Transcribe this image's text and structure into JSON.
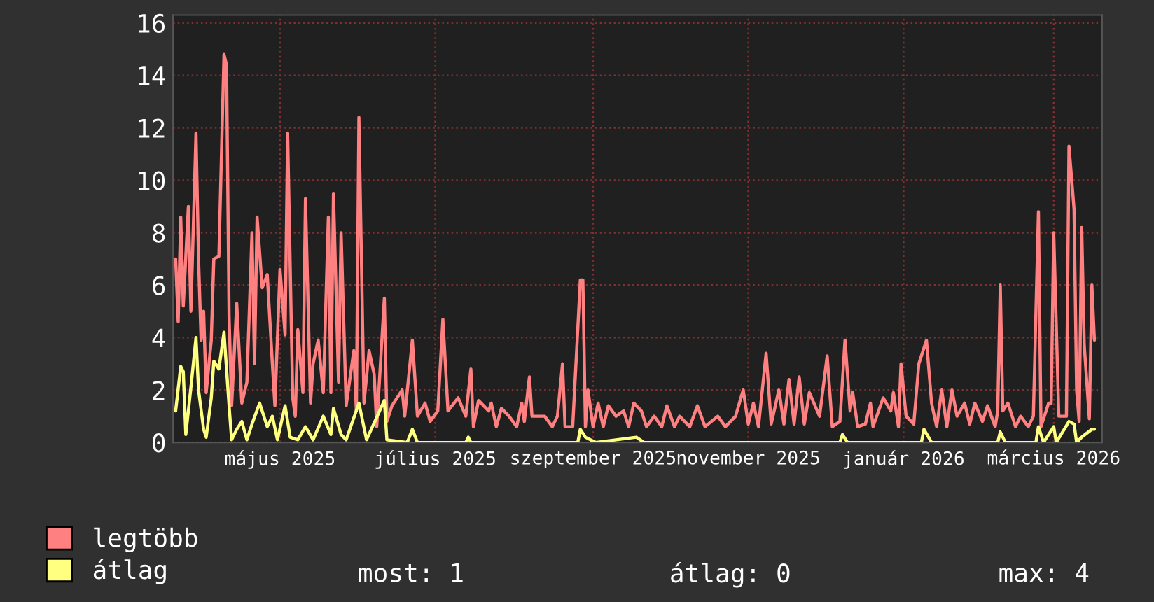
{
  "chart_data": {
    "type": "line",
    "xlim": [
      "2025-03-20",
      "2026-03-20"
    ],
    "xticks": [
      {
        "value": "2025-05-01",
        "label": "május 2025"
      },
      {
        "value": "2025-07-01",
        "label": "július 2025"
      },
      {
        "value": "2025-09-01",
        "label": "szeptember 2025"
      },
      {
        "value": "2025-11-01",
        "label": "november 2025"
      },
      {
        "value": "2026-01-01",
        "label": "január 2026"
      },
      {
        "value": "2026-03-01",
        "label": "március 2026"
      }
    ],
    "ylim": [
      0,
      16.3
    ],
    "yticks": [
      0,
      2,
      4,
      6,
      8,
      10,
      12,
      14,
      16
    ],
    "grid": true,
    "legend": "bottom left",
    "annotations": [
      "most: 1",
      "átlag: 0",
      "max: 4"
    ],
    "series": [
      {
        "name": "legtöbb",
        "color": "#ff8080",
        "x": [
          "2025-03-21",
          "2025-03-22",
          "2025-03-23",
          "2025-03-24",
          "2025-03-26",
          "2025-03-27",
          "2025-03-29",
          "2025-03-30",
          "2025-03-31",
          "2025-04-01",
          "2025-04-02",
          "2025-04-04",
          "2025-04-05",
          "2025-04-07",
          "2025-04-09",
          "2025-04-10",
          "2025-04-11",
          "2025-04-12",
          "2025-04-14",
          "2025-04-16",
          "2025-04-18",
          "2025-04-20",
          "2025-04-21",
          "2025-04-22",
          "2025-04-24",
          "2025-04-26",
          "2025-04-28",
          "2025-04-29",
          "2025-05-01",
          "2025-05-03",
          "2025-05-04",
          "2025-05-06",
          "2025-05-07",
          "2025-05-08",
          "2025-05-10",
          "2025-05-11",
          "2025-05-13",
          "2025-05-14",
          "2025-05-16",
          "2025-05-18",
          "2025-05-20",
          "2025-05-21",
          "2025-05-22",
          "2025-05-24",
          "2025-05-25",
          "2025-05-27",
          "2025-05-30",
          "2025-05-31",
          "2025-06-01",
          "2025-06-03",
          "2025-06-05",
          "2025-06-07",
          "2025-06-08",
          "2025-06-11",
          "2025-06-12",
          "2025-06-14",
          "2025-06-18",
          "2025-06-19",
          "2025-06-22",
          "2025-06-24",
          "2025-06-27",
          "2025-06-29",
          "2025-07-02",
          "2025-07-04",
          "2025-07-06",
          "2025-07-10",
          "2025-07-13",
          "2025-07-15",
          "2025-07-16",
          "2025-07-18",
          "2025-07-22",
          "2025-07-23",
          "2025-07-25",
          "2025-07-27",
          "2025-07-30",
          "2025-08-02",
          "2025-08-04",
          "2025-08-05",
          "2025-08-07",
          "2025-08-08",
          "2025-08-13",
          "2025-08-16",
          "2025-08-18",
          "2025-08-20",
          "2025-08-21",
          "2025-08-24",
          "2025-08-27",
          "2025-08-28",
          "2025-08-29",
          "2025-08-30",
          "2025-09-01",
          "2025-09-03",
          "2025-09-05",
          "2025-09-07",
          "2025-09-10",
          "2025-09-13",
          "2025-09-15",
          "2025-09-17",
          "2025-09-20",
          "2025-09-22",
          "2025-09-25",
          "2025-09-28",
          "2025-09-30",
          "2025-10-03",
          "2025-10-05",
          "2025-10-09",
          "2025-10-12",
          "2025-10-15",
          "2025-10-20",
          "2025-10-23",
          "2025-10-27",
          "2025-10-30",
          "2025-11-01",
          "2025-11-03",
          "2025-11-05",
          "2025-11-08",
          "2025-11-10",
          "2025-11-13",
          "2025-11-15",
          "2025-11-17",
          "2025-11-19",
          "2025-11-21",
          "2025-11-23",
          "2025-11-25",
          "2025-11-29",
          "2025-12-02",
          "2025-12-04",
          "2025-12-07",
          "2025-12-09",
          "2025-12-11",
          "2025-12-12",
          "2025-12-14",
          "2025-12-17",
          "2025-12-19",
          "2025-12-20",
          "2025-12-24",
          "2025-12-27",
          "2025-12-28",
          "2025-12-30",
          "2025-12-31",
          "2026-01-02",
          "2026-01-05",
          "2026-01-07",
          "2026-01-10",
          "2026-01-12",
          "2026-01-14",
          "2026-01-16",
          "2026-01-18",
          "2026-01-20",
          "2026-01-22",
          "2026-01-25",
          "2026-01-27",
          "2026-01-29",
          "2026-02-01",
          "2026-02-03",
          "2026-02-06",
          "2026-02-07",
          "2026-02-08",
          "2026-02-09",
          "2026-02-11",
          "2026-02-14",
          "2026-02-16",
          "2026-02-19",
          "2026-02-21",
          "2026-02-23",
          "2026-02-24",
          "2026-02-27",
          "2026-02-28",
          "2026-03-01",
          "2026-03-03",
          "2026-03-06",
          "2026-03-07",
          "2026-03-09",
          "2026-03-10",
          "2026-03-11",
          "2026-03-12",
          "2026-03-13",
          "2026-03-15",
          "2026-03-16",
          "2026-03-17"
        ],
        "values": [
          7.0,
          4.6,
          8.6,
          5.2,
          9.0,
          5.0,
          11.8,
          7.0,
          3.9,
          5.0,
          1.9,
          3.9,
          7.0,
          7.1,
          14.8,
          14.4,
          4.8,
          1.4,
          5.3,
          1.5,
          2.3,
          8.0,
          3.0,
          8.6,
          5.9,
          6.4,
          3.0,
          1.4,
          6.6,
          4.1,
          11.8,
          1.7,
          1.0,
          4.3,
          1.9,
          9.3,
          1.5,
          3.0,
          3.9,
          1.9,
          8.6,
          1.9,
          9.5,
          2.3,
          8.0,
          1.4,
          3.5,
          1.2,
          12.4,
          1.5,
          3.5,
          2.6,
          0.6,
          5.5,
          0.8,
          1.4,
          2.0,
          1.0,
          3.9,
          1.0,
          1.5,
          0.8,
          1.2,
          4.7,
          1.2,
          1.7,
          1.0,
          2.8,
          0.6,
          1.6,
          1.2,
          1.5,
          0.6,
          1.3,
          1.0,
          0.6,
          1.5,
          0.8,
          2.5,
          1.0,
          1.0,
          0.6,
          1.0,
          3.0,
          0.6,
          0.6,
          6.2,
          6.2,
          0.6,
          2.0,
          0.6,
          1.5,
          0.6,
          1.4,
          1.0,
          1.2,
          0.6,
          1.5,
          1.2,
          0.6,
          1.0,
          0.6,
          1.4,
          0.6,
          1.0,
          0.6,
          1.4,
          0.6,
          1.0,
          0.6,
          1.0,
          2.0,
          0.7,
          1.5,
          0.6,
          3.4,
          0.7,
          2.0,
          0.7,
          2.4,
          0.7,
          2.5,
          0.7,
          1.9,
          1.0,
          3.3,
          0.6,
          0.8,
          3.9,
          1.2,
          1.9,
          0.6,
          0.7,
          1.5,
          0.6,
          1.7,
          1.2,
          1.9,
          0.6,
          3.0,
          1.0,
          0.7,
          3.0,
          3.9,
          1.5,
          0.6,
          2.0,
          0.6,
          2.0,
          1.0,
          1.5,
          0.7,
          1.5,
          0.8,
          1.4,
          0.6,
          1.2,
          6.0,
          1.2,
          1.5,
          0.6,
          1.0,
          0.6,
          1.0,
          8.8,
          0.6,
          1.5,
          1.5,
          8.0,
          1.0,
          1.0,
          11.3,
          8.9,
          2.0,
          0.8,
          8.2,
          3.7,
          0.9,
          6.0,
          3.9
        ]
      },
      {
        "name": "átlag",
        "color": "#ffff80",
        "x": [
          "2025-03-21",
          "2025-03-23",
          "2025-03-24",
          "2025-03-25",
          "2025-03-27",
          "2025-03-29",
          "2025-03-30",
          "2025-04-01",
          "2025-04-02",
          "2025-04-04",
          "2025-04-05",
          "2025-04-07",
          "2025-04-09",
          "2025-04-11",
          "2025-04-12",
          "2025-04-14",
          "2025-04-16",
          "2025-04-18",
          "2025-04-20",
          "2025-04-23",
          "2025-04-26",
          "2025-04-28",
          "2025-04-30",
          "2025-05-03",
          "2025-05-05",
          "2025-05-08",
          "2025-05-11",
          "2025-05-14",
          "2025-05-18",
          "2025-05-21",
          "2025-05-22",
          "2025-05-25",
          "2025-05-27",
          "2025-06-01",
          "2025-06-04",
          "2025-06-11",
          "2025-06-12",
          "2025-06-20",
          "2025-06-22",
          "2025-06-24",
          "2025-07-13",
          "2025-07-14",
          "2025-07-15",
          "2025-07-27",
          "2025-08-26",
          "2025-08-27",
          "2025-08-29",
          "2025-09-02",
          "2025-09-18",
          "2025-09-21",
          "2025-12-07",
          "2025-12-08",
          "2025-12-10",
          "2026-01-08",
          "2026-01-09",
          "2026-01-12",
          "2026-02-07",
          "2026-02-08",
          "2026-02-10",
          "2026-02-22",
          "2026-02-23",
          "2026-02-25",
          "2026-03-01",
          "2026-03-02",
          "2026-03-07",
          "2026-03-09",
          "2026-03-10",
          "2026-03-12",
          "2026-03-16",
          "2026-03-17"
        ],
        "values": [
          1.2,
          2.9,
          2.7,
          0.3,
          2.1,
          4.0,
          2.0,
          0.5,
          0.2,
          1.7,
          3.1,
          2.8,
          4.2,
          1.4,
          0.1,
          0.5,
          0.8,
          0.1,
          0.7,
          1.5,
          0.6,
          1.0,
          0.1,
          1.4,
          0.2,
          0.1,
          0.6,
          0.1,
          1.0,
          0.3,
          1.3,
          0.3,
          0.1,
          1.5,
          0.1,
          1.6,
          0.1,
          0,
          0.5,
          0,
          0,
          0.2,
          0,
          0,
          0,
          0.5,
          0.2,
          0,
          0.2,
          0,
          0,
          0.3,
          0,
          0,
          0.5,
          0,
          0,
          0.4,
          0,
          0,
          0.6,
          0,
          0.6,
          0,
          0.8,
          0.7,
          0,
          0.2,
          0.5,
          0.5
        ]
      }
    ]
  }
}
